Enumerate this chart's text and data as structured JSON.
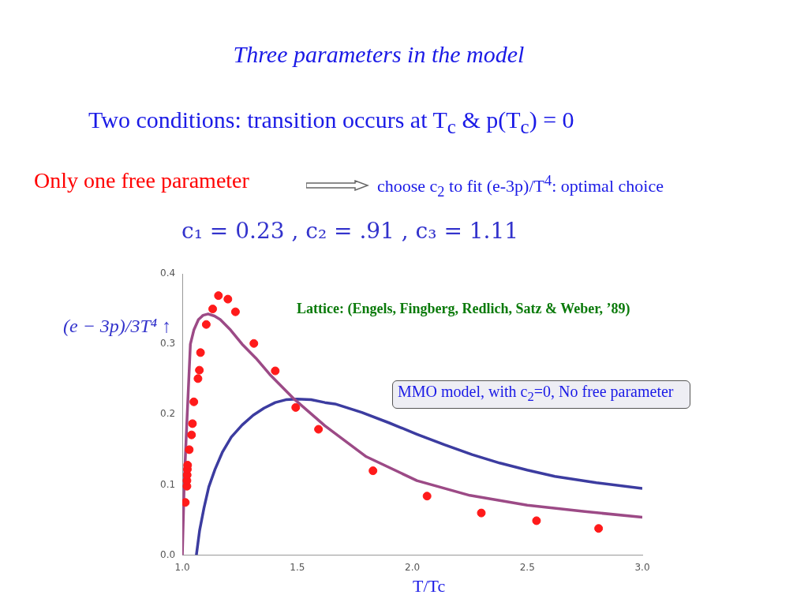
{
  "chart_data": {
    "type": "scatter",
    "title": "Three parameters in the model",
    "xlabel": "T/Tc",
    "ylabel": "(e − 3p)/3T⁴ ↑",
    "annotations": [
      "Two conditions: transition occurs at T$_{c}$ & p(T$_{c}$) = 0",
      "Only one free parameter",
      "choose c$_{2}$ to fit (e-3p)/T$^{4}$: optimal choice",
      "c₁ = 0.23 , c₂ = .91 , c₃ = 1.11",
      "Lattice: (Engels, Fingberg, Redlich, Satz & Weber, ’89)",
      "MMO model, with c$_{2}$=0, No free parameter"
    ],
    "xlim": [
      1.0,
      3.0
    ],
    "xticks": [
      {
        "value": 1,
        "label": "1.0"
      },
      {
        "value": 1.5,
        "label": "1.5"
      },
      {
        "value": 2,
        "label": "2.0"
      },
      {
        "value": 2.5,
        "label": "2.5"
      },
      {
        "value": 3,
        "label": "3.0"
      }
    ],
    "ylim": [
      0,
      0.4
    ],
    "yticks": [
      {
        "value": 0,
        "label": "0.0"
      },
      {
        "value": 0.1,
        "label": "0.1"
      },
      {
        "value": 0.2,
        "label": "0.2"
      },
      {
        "value": 0.3,
        "label": "0.3"
      },
      {
        "value": 0.4,
        "label": "0.4"
      }
    ],
    "grid": false,
    "legend": false,
    "series": [
      {
        "type": "scatter",
        "marker": "circle",
        "color": "#ff1a1a",
        "x": [
          1.013,
          1.02,
          1.02,
          1.021,
          1.022,
          1.023,
          1.03,
          1.04,
          1.044,
          1.05,
          1.068,
          1.074,
          1.079,
          1.104,
          1.132,
          1.157,
          1.198,
          1.231,
          1.311,
          1.404,
          1.493,
          1.592,
          1.829,
          2.064,
          2.3,
          2.54,
          2.81
        ],
        "values": [
          0.075,
          0.098,
          0.106,
          0.114,
          0.122,
          0.128,
          0.15,
          0.171,
          0.187,
          0.218,
          0.251,
          0.263,
          0.288,
          0.328,
          0.35,
          0.369,
          0.364,
          0.346,
          0.301,
          0.262,
          0.21,
          0.179,
          0.12,
          0.084,
          0.06,
          0.049,
          0.038
        ]
      },
      {
        "type": "line",
        "marker": "none",
        "color": "#9c4a86",
        "x": [
          1.0,
          1.008,
          1.019,
          1.035,
          1.05,
          1.07,
          1.09,
          1.112,
          1.14,
          1.165,
          1.21,
          1.26,
          1.32,
          1.38,
          1.486,
          1.546,
          1.62,
          1.8,
          2.02,
          2.25,
          2.5,
          2.75,
          3.0
        ],
        "values": [
          0,
          0.1,
          0.184,
          0.3,
          0.32,
          0.335,
          0.341,
          0.343,
          0.34,
          0.335,
          0.32,
          0.3,
          0.28,
          0.257,
          0.222,
          0.205,
          0.184,
          0.14,
          0.106,
          0.085,
          0.071,
          0.062,
          0.054
        ]
      },
      {
        "type": "line",
        "marker": "none",
        "color": "#3c3ca0",
        "x": [
          1.061,
          1.075,
          1.094,
          1.115,
          1.142,
          1.175,
          1.213,
          1.26,
          1.308,
          1.355,
          1.404,
          1.45,
          1.499,
          1.56,
          1.62,
          1.664,
          1.78,
          1.9,
          2.02,
          2.14,
          2.26,
          2.38,
          2.5,
          2.62,
          2.8,
          3.0
        ],
        "values": [
          0,
          0.035,
          0.067,
          0.097,
          0.122,
          0.147,
          0.168,
          0.185,
          0.199,
          0.209,
          0.217,
          0.221,
          0.222,
          0.221,
          0.217,
          0.215,
          0.203,
          0.188,
          0.172,
          0.157,
          0.143,
          0.131,
          0.121,
          0.112,
          0.103,
          0.095
        ]
      }
    ]
  }
}
